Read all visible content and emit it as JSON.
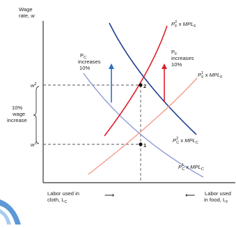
{
  "axes": {
    "y_label_line1": "Wage",
    "y_label_line2": "rate, w",
    "x_left_line1": "Labor used in",
    "x_left_line2": "cloth, L",
    "x_left_sub": "C",
    "x_right_line1": "Labor used",
    "x_right_line2": "in food, L",
    "x_right_sub": "F",
    "arrow_right": "⟶",
    "arrow_left": "⟵"
  },
  "wages": {
    "w2": "w",
    "w2_sup": "2",
    "w1": "w",
    "w1_sup": "1"
  },
  "points": {
    "p1": "1",
    "p2": "2"
  },
  "bracket_text": {
    "line1": "10%",
    "line2": "wage",
    "line3": "increase"
  },
  "annotations": {
    "pc_line1": "P",
    "pc_sub": "C",
    "pc_line2": "increases",
    "pc_line3": "10%",
    "pf_line1": "P",
    "pf_sub": "F",
    "pf_line2": "increases",
    "pf_line3": "10%"
  },
  "curves": {
    "pf2_p": "P",
    "pf2_sup": "2",
    "pf2_psub": "F",
    "pf2_x": " x ",
    "pf2_mpl": "MPL",
    "pf2_mplsub": "F",
    "pf1_p": "P",
    "pf1_sup": "1",
    "pf1_psub": "F",
    "pf1_x": " x ",
    "pf1_mpl": "MPL",
    "pf1_mplsub": "F",
    "pc2_p": "P",
    "pc2_sup": "2",
    "pc2_psub": "C",
    "pc2_x": " x ",
    "pc2_mpl": "MPL",
    "pc2_mplsub": "C",
    "pc1_p": "P",
    "pc1_sup": "1",
    "pc1_psub": "C",
    "pc1_x": " x ",
    "pc1_mpl": "MPL",
    "pc1_mplsub": "C"
  },
  "colors": {
    "axis": "#333333",
    "pc_new": "#1f3f8f",
    "pc_old": "#8f9ad6",
    "pf_new": "#e0202a",
    "pf_old": "#f29a86",
    "dashed": "#555555",
    "blue_arrow": "#2f6fc0",
    "red_arrow": "#e0202a",
    "corner_swoosh": "#3f86d0"
  }
}
